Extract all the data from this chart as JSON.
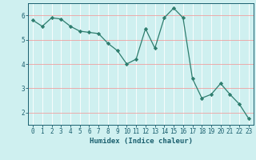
{
  "x": [
    0,
    1,
    2,
    3,
    4,
    5,
    6,
    7,
    8,
    9,
    10,
    11,
    12,
    13,
    14,
    15,
    16,
    17,
    18,
    19,
    20,
    21,
    22,
    23
  ],
  "y": [
    5.8,
    5.55,
    5.9,
    5.85,
    5.55,
    5.35,
    5.3,
    5.25,
    4.85,
    4.55,
    4.0,
    4.2,
    5.45,
    4.65,
    5.9,
    6.3,
    5.9,
    3.4,
    2.6,
    2.75,
    3.2,
    2.75,
    2.35,
    1.75
  ],
  "line_color": "#2e7d6e",
  "marker": "D",
  "marker_size": 2.2,
  "bg_color": "#cff0f0",
  "grid_color": "#ffffff",
  "xlabel": "Humidex (Indice chaleur)",
  "xlim": [
    -0.5,
    23.5
  ],
  "ylim": [
    1.5,
    6.5
  ],
  "yticks": [
    2,
    3,
    4,
    5,
    6
  ],
  "xticks": [
    0,
    1,
    2,
    3,
    4,
    5,
    6,
    7,
    8,
    9,
    10,
    11,
    12,
    13,
    14,
    15,
    16,
    17,
    18,
    19,
    20,
    21,
    22,
    23
  ],
  "font_color": "#1a5f6e",
  "label_fontsize": 6.5,
  "tick_fontsize": 5.5
}
